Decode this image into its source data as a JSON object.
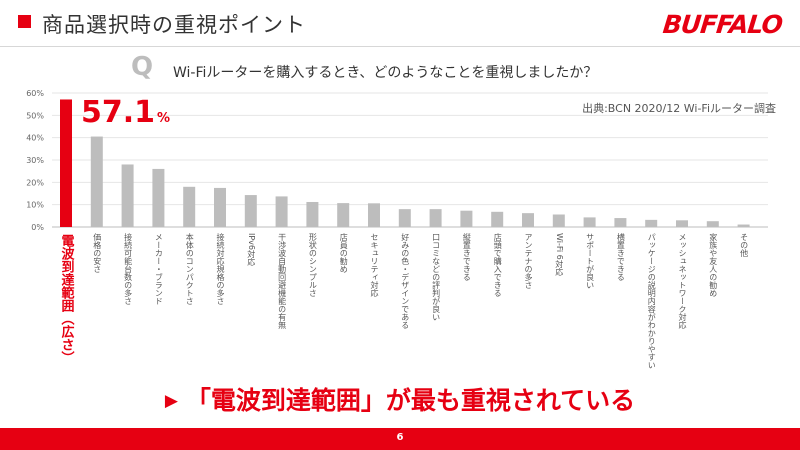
{
  "header": {
    "title": "商品選択時の重視ポイント",
    "brand": "BUFFALO"
  },
  "question": {
    "mark": "Q",
    "text": "Wi-Fiルーターを購入するとき、どのようなことを重視しましたか？"
  },
  "source": "出典:BCN 2020/12 Wi-Fiルーター調査",
  "highlight": {
    "value": "57.1",
    "unit": "%"
  },
  "conclusion": {
    "arrow": "▶",
    "text": "「電波到達範囲」が最も重視されている"
  },
  "page_number": "6",
  "colors": {
    "accent": "#e60012",
    "bar": "#bdbdbd"
  },
  "chart_data": {
    "type": "bar",
    "ylim": [
      0,
      60
    ],
    "yticks": [
      "0%",
      "10%",
      "20%",
      "30%",
      "40%",
      "50%",
      "60%"
    ],
    "grid": true,
    "categories": [
      "電波到達範囲（広さ）",
      "価格の安さ",
      "接続可能台数の多さ",
      "メーカー・ブランド",
      "本体のコンパクトさ",
      "接続対応規格の多さ",
      "IPv6対応",
      "干渉波自動回避機能の有無",
      "形状のシンプルさ",
      "店員の勧め",
      "セキュリティ対応",
      "好みの色・デザインである",
      "口コミなどの評判が良い",
      "縦置きできる",
      "店頭で購入できる",
      "アンテナの多さ",
      "Wi-Fi 6対応",
      "サポートが良い",
      "横置きできる",
      "パッケージの説明内容がわかりやすい",
      "メッシュネットワーク対応",
      "家族や友人の勧め",
      "その他"
    ],
    "values": [
      57.1,
      40.5,
      28.0,
      26.0,
      18.0,
      17.5,
      14.3,
      13.7,
      11.2,
      10.7,
      10.6,
      8.0,
      8.0,
      7.3,
      6.8,
      6.2,
      5.6,
      4.3,
      4.0,
      3.2,
      3.0,
      2.6,
      1.1
    ]
  }
}
